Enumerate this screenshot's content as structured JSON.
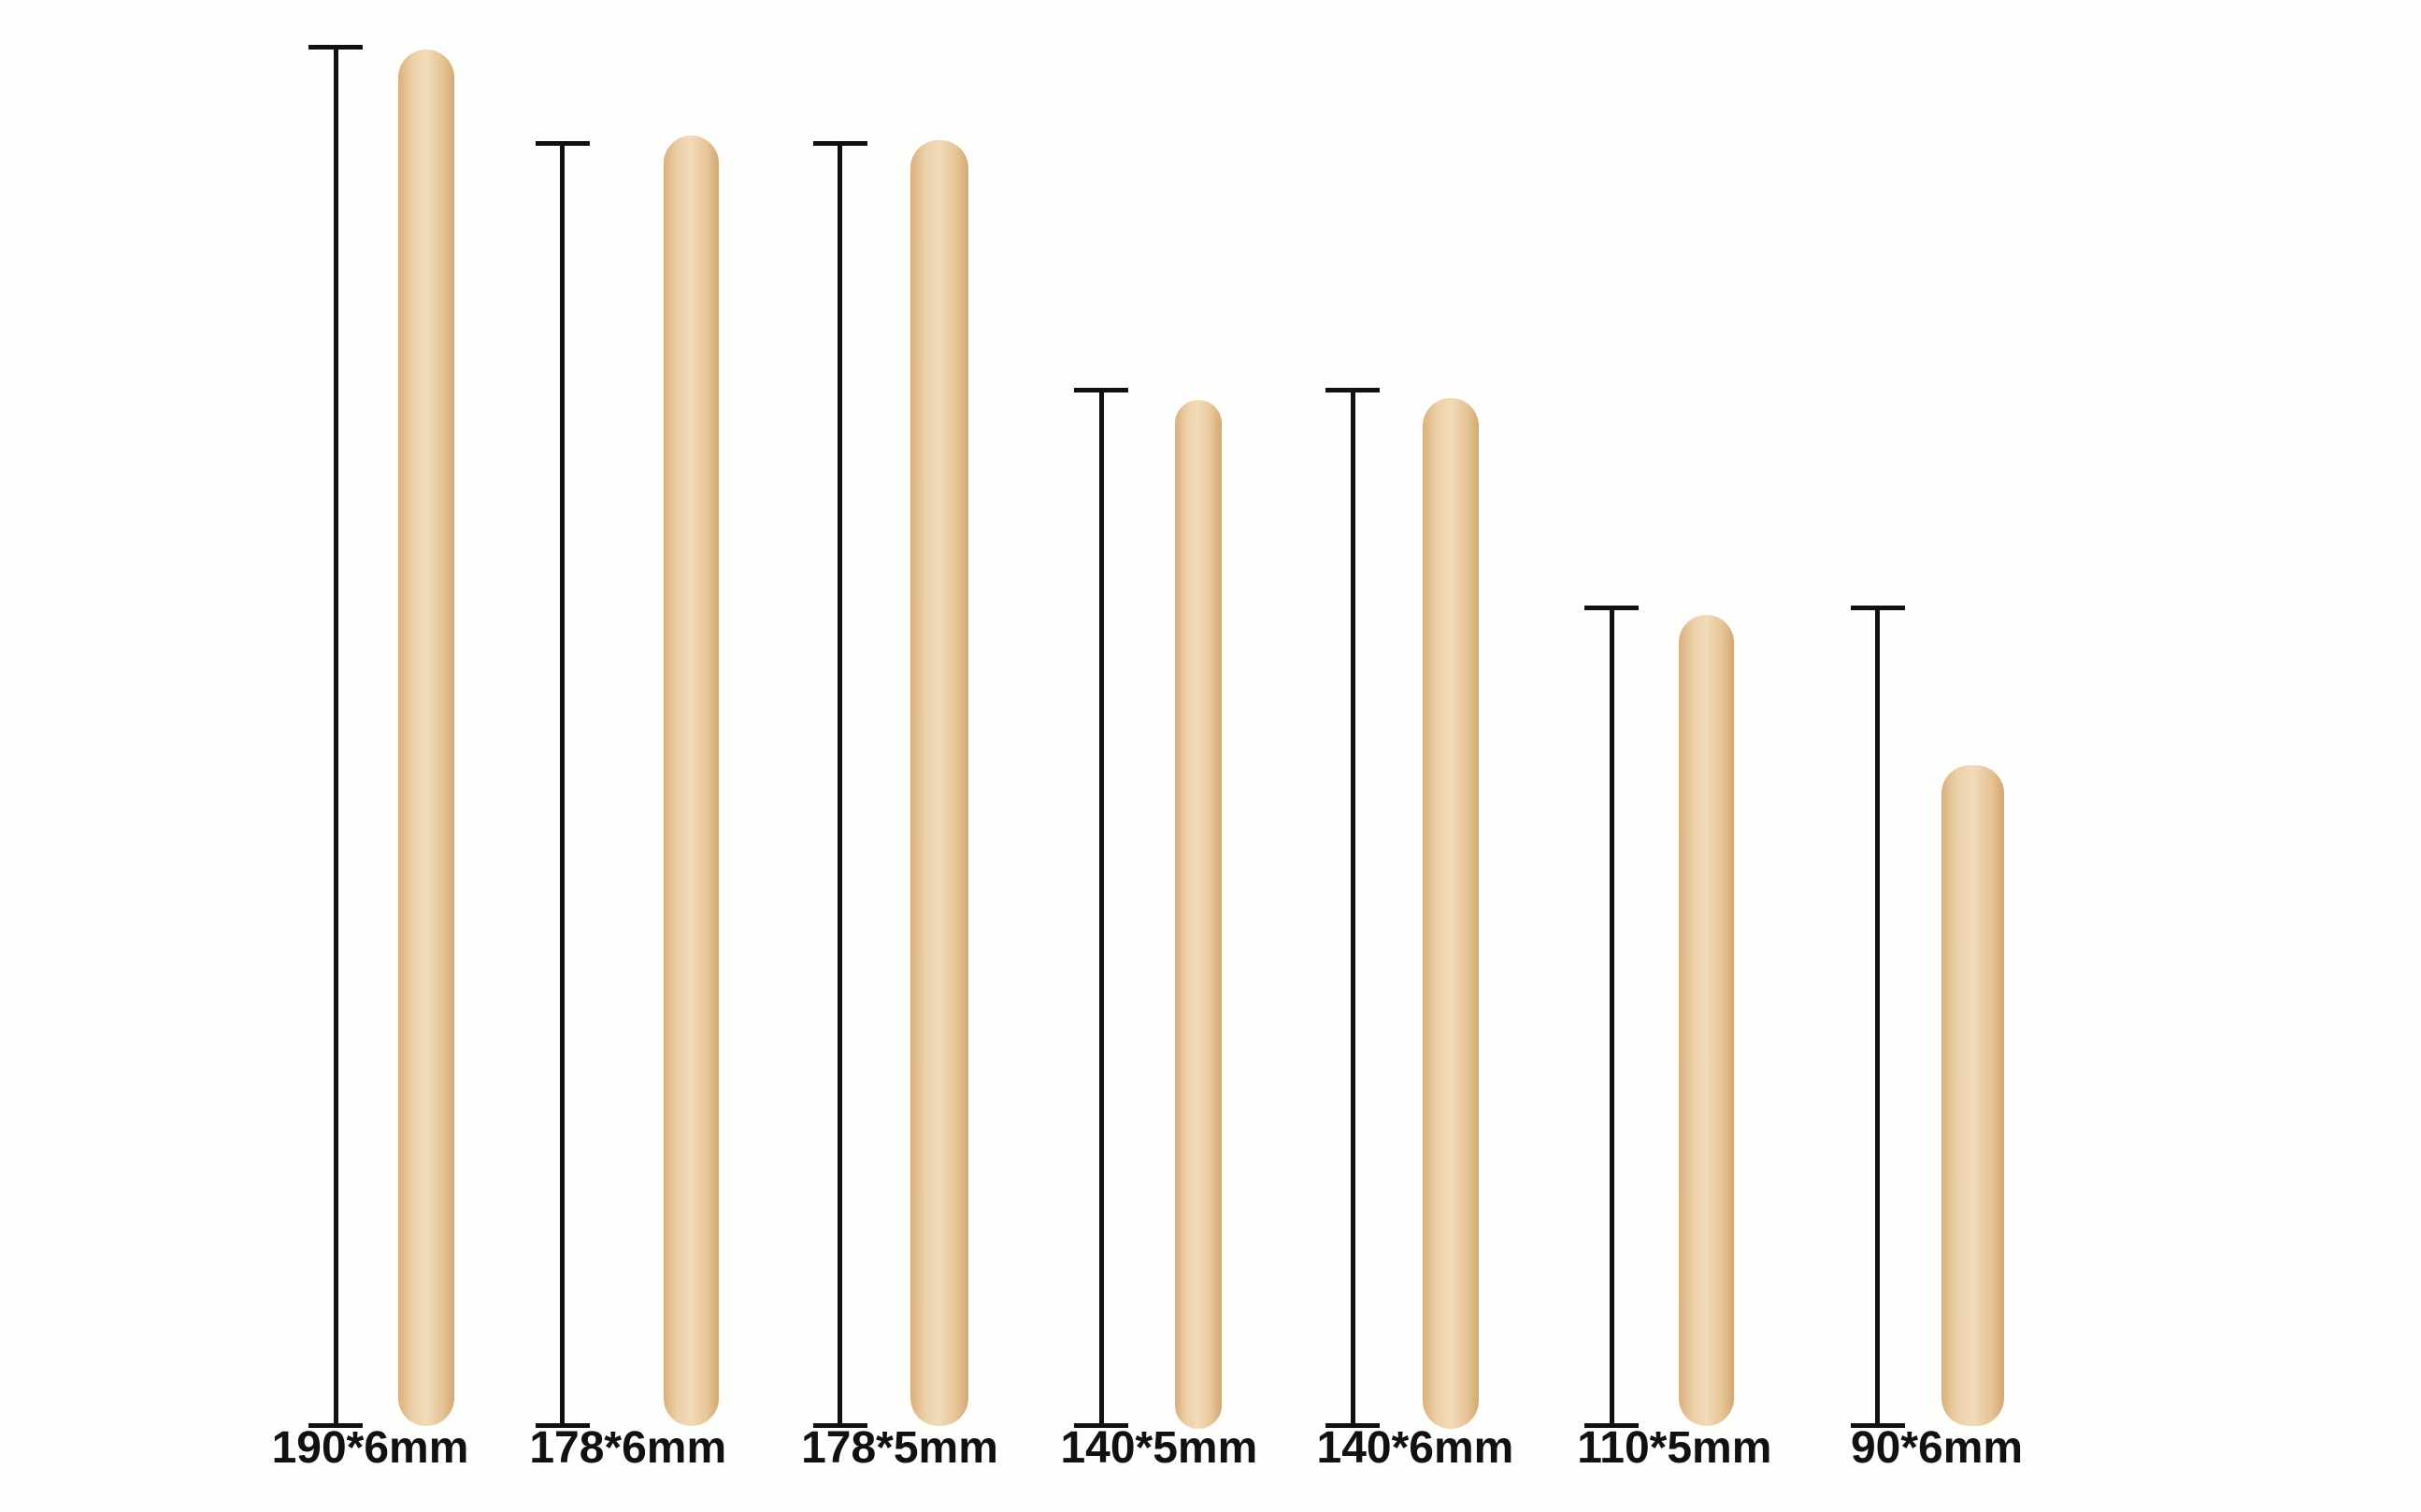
{
  "sticks": [
    {
      "label": "190*6mm",
      "length_mm": 190,
      "width_mm": 6
    },
    {
      "label": "178*6mm",
      "length_mm": 178,
      "width_mm": 6
    },
    {
      "label": "178*5mm",
      "length_mm": 178,
      "width_mm": 5
    },
    {
      "label": "140*5mm",
      "length_mm": 140,
      "width_mm": 5
    },
    {
      "label": "140*6mm",
      "length_mm": 140,
      "width_mm": 6
    },
    {
      "label": "110*5mm",
      "length_mm": 110,
      "width_mm": 5
    },
    {
      "label": "90*6mm",
      "length_mm": 90,
      "width_mm": 6
    }
  ],
  "colors": {
    "wood": "#ecd0a8",
    "marker": "#111111",
    "background": "#fefefd"
  }
}
